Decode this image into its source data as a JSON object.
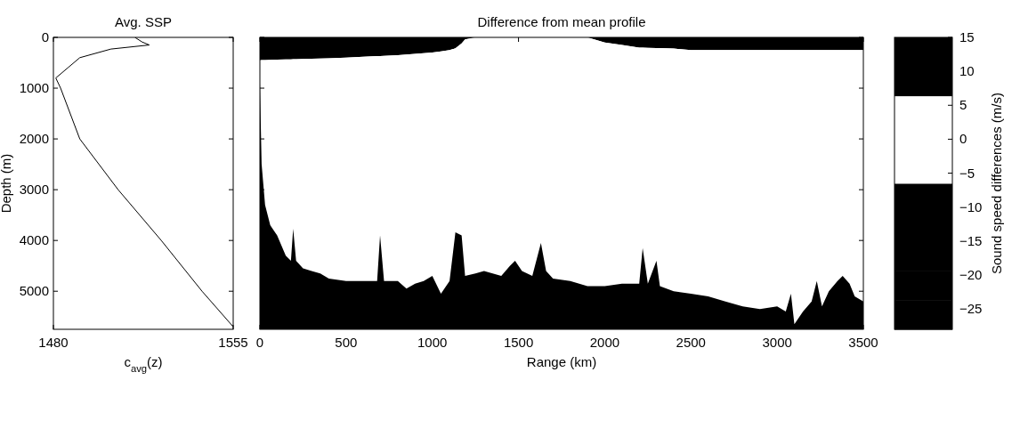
{
  "chart_data": [
    {
      "type": "line",
      "title": "Avg. SSP",
      "xlabel": "c$_{avg}$(z)",
      "ylabel": "Depth (m)",
      "xlim": [
        1480,
        1555
      ],
      "xticks": [
        1480,
        1555
      ],
      "ylim": [
        5750,
        0
      ],
      "yticks": [
        0,
        1000,
        2000,
        3000,
        4000,
        5000
      ],
      "series": [
        {
          "color": "#000000",
          "x": [
            1514,
            1517,
            1520,
            1504,
            1491,
            1486,
            1481,
            1483,
            1491,
            1507,
            1525,
            1542,
            1555
          ],
          "values": [
            0,
            90,
            150,
            230,
            400,
            600,
            800,
            1000,
            2000,
            3000,
            4000,
            5000,
            5700
          ]
        }
      ]
    },
    {
      "type": "area",
      "title": "Difference from mean profile",
      "xlabel": "Range (km)",
      "clabel": "Sound speed differences (m/s)",
      "clim": [
        -28,
        15
      ],
      "cticks": [
        -25,
        -20,
        -15,
        -10,
        -5,
        0,
        5,
        10,
        15
      ],
      "xlim": [
        0,
        3500
      ],
      "xticks": [
        0,
        500,
        1000,
        1500,
        2000,
        2500,
        3000,
        3500
      ],
      "ylim": [
        5750,
        0
      ],
      "yticks": [
        0,
        1000,
        2000,
        3000,
        4000,
        5000
      ],
      "tick_labels": "x",
      "stacked": true,
      "x": [
        0,
        10,
        30,
        60,
        100,
        150,
        180,
        193,
        210,
        250,
        300,
        350,
        400,
        500,
        600,
        680,
        697,
        720,
        800,
        850,
        900,
        950,
        1000,
        1050,
        1100,
        1134,
        1170,
        1190,
        1250,
        1300,
        1400,
        1450,
        1480,
        1520,
        1580,
        1630,
        1660,
        1700,
        1800,
        1900,
        2000,
        2100,
        2200,
        2220,
        2250,
        2300,
        2320,
        2400,
        2500,
        2600,
        2700,
        2800,
        2900,
        3000,
        3050,
        3080,
        3100,
        3150,
        3200,
        3230,
        3260,
        3300,
        3350,
        3380,
        3420,
        3450,
        3500
      ],
      "colors": [
        "#000000",
        "#000000",
        "#000000",
        "#000000",
        "#000000",
        "#ffffff",
        "#ffffff",
        "#ffffff",
        "#000000",
        "#000000"
      ],
      "series": [
        {
          "color": "#000000",
          "values": [
            450,
            449,
            447,
            444,
            440,
            435,
            432,
            431,
            429,
            425,
            420,
            415,
            410,
            400,
            383,
            370,
            367,
            363,
            350,
            338,
            325,
            313,
            300,
            275,
            250,
            216,
            120,
            40,
            0,
            0,
            0,
            0,
            0,
            0,
            0,
            0,
            0,
            0,
            0,
            0,
            100,
            150,
            200,
            202,
            205,
            210,
            212,
            220,
            250,
            250,
            250,
            250,
            250,
            250,
            250,
            250,
            250,
            250,
            250,
            250,
            250,
            250,
            250,
            250,
            250,
            250,
            250
          ]
        },
        {
          "color": "#ffffff",
          "values": [
            450,
            2051,
            2853,
            3256,
            3460,
            3865,
            3968,
            3339,
            3971,
            4125,
            4180,
            4235,
            4340,
            4400,
            4417,
            4430,
            3533,
            4437,
            4450,
            4612,
            4525,
            4487,
            4400,
            4775,
            4550,
            3624,
            3780,
            4660,
            4650,
            4600,
            4700,
            4500,
            4400,
            4600,
            4700,
            4050,
            4600,
            4750,
            4800,
            4900,
            4800,
            4700,
            4650,
            3948,
            4645,
            4190,
            4688,
            4780,
            4800,
            4850,
            4950,
            5050,
            5100,
            5050,
            5150,
            4800,
            5400,
            5150,
            4950,
            4550,
            5050,
            4750,
            4550,
            4450,
            4600,
            4850,
            4950
          ]
        },
        {
          "color": "#000000",
          "values": [
            4850,
            3250,
            2450,
            2050,
            1850,
            1450,
            1350,
            1980,
            1350,
            1200,
            1150,
            1100,
            1000,
            950,
            950,
            950,
            1850,
            950,
            950,
            800,
            900,
            950,
            1050,
            700,
            950,
            1910,
            1850,
            1050,
            1100,
            1150,
            1050,
            1250,
            1350,
            1150,
            1050,
            1700,
            1150,
            1000,
            950,
            850,
            850,
            900,
            900,
            1600,
            900,
            1350,
            850,
            750,
            700,
            650,
            550,
            450,
            400,
            450,
            350,
            700,
            100,
            350,
            550,
            950,
            450,
            750,
            950,
            1050,
            900,
            650,
            550
          ]
        }
      ]
    }
  ]
}
